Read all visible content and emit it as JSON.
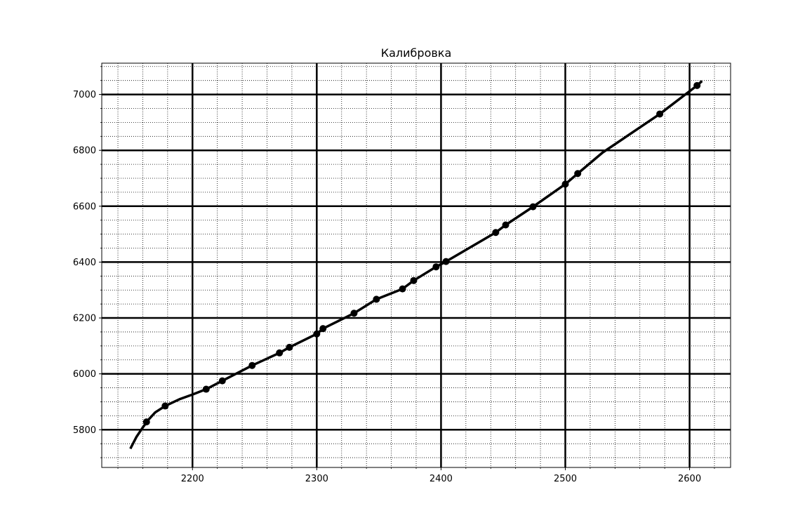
{
  "chart_data": {
    "type": "line",
    "title": "Калибровка",
    "xlabel": "",
    "ylabel": "",
    "xlim": [
      2127,
      2633
    ],
    "ylim": [
      5665,
      7112
    ],
    "x_major_ticks": [
      2200,
      2300,
      2400,
      2500,
      2600
    ],
    "x_tick_labels": [
      "2200",
      "2300",
      "2400",
      "2500",
      "2600"
    ],
    "y_major_ticks": [
      5800,
      6000,
      6200,
      6400,
      6600,
      6800,
      7000
    ],
    "y_tick_labels": [
      "5800",
      "6000",
      "6200",
      "6400",
      "6600",
      "6800",
      "7000"
    ],
    "x_minor_step": 20,
    "y_minor_step": 50,
    "grid": "major solid + minor dotted",
    "line_color": "#000000",
    "series": [
      {
        "kind": "points",
        "x": [
          2163,
          2178,
          2211,
          2224,
          2248,
          2270,
          2278,
          2300,
          2305,
          2330,
          2348,
          2369,
          2378,
          2396,
          2404,
          2444,
          2452,
          2474,
          2500,
          2510,
          2576,
          2606
        ],
        "y": [
          5828,
          5885,
          5945,
          5975,
          6030,
          6075,
          6095,
          6143,
          6162,
          6217,
          6267,
          6304,
          6334,
          6383,
          6402,
          6506,
          6533,
          6598,
          6679,
          6717,
          6930,
          7032
        ]
      },
      {
        "kind": "fit-curve",
        "x": [
          2150,
          2155,
          2160,
          2165,
          2170,
          2178,
          2190,
          2200,
          2211,
          2224,
          2248,
          2270,
          2278,
          2300,
          2305,
          2330,
          2348,
          2369,
          2378,
          2396,
          2404,
          2444,
          2452,
          2474,
          2500,
          2510,
          2530,
          2576,
          2606,
          2610
        ],
        "y": [
          5732,
          5775,
          5808,
          5838,
          5862,
          5885,
          5910,
          5926,
          5945,
          5975,
          6030,
          6075,
          6095,
          6143,
          6162,
          6217,
          6267,
          6304,
          6334,
          6383,
          6402,
          6506,
          6533,
          6598,
          6679,
          6717,
          6792,
          6930,
          7032,
          7048
        ]
      }
    ]
  }
}
